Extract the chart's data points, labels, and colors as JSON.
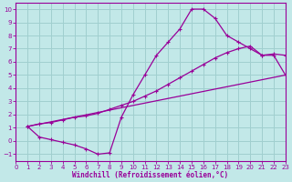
{
  "xlabel": "Windchill (Refroidissement éolien,°C)",
  "xlim": [
    0,
    23
  ],
  "ylim": [
    -1.5,
    10.5
  ],
  "xticks": [
    0,
    1,
    2,
    3,
    4,
    5,
    6,
    7,
    8,
    9,
    10,
    11,
    12,
    13,
    14,
    15,
    16,
    17,
    18,
    19,
    20,
    21,
    22,
    23
  ],
  "yticks": [
    -1,
    0,
    1,
    2,
    3,
    4,
    5,
    6,
    7,
    8,
    9,
    10
  ],
  "bg_color": "#c2e8e8",
  "grid_color": "#a0cfcf",
  "line_color": "#990099",
  "curve1_x": [
    1,
    2,
    3,
    4,
    5,
    6,
    7,
    8,
    9,
    10,
    11,
    12,
    13,
    14,
    15,
    16,
    17,
    18,
    19,
    20,
    21,
    22,
    23
  ],
  "curve1_y": [
    1.1,
    0.3,
    0.1,
    -0.1,
    -0.3,
    -0.6,
    -1.0,
    -0.9,
    1.8,
    3.5,
    5.0,
    6.5,
    7.5,
    8.5,
    10.0,
    10.0,
    9.3,
    8.0,
    7.5,
    7.0,
    6.5,
    6.5,
    5.0
  ],
  "curve2_x": [
    1,
    2,
    3,
    4,
    5,
    6,
    7,
    8,
    9,
    10,
    11,
    12,
    13,
    14,
    15,
    16,
    17,
    18,
    19,
    20,
    21,
    22,
    23
  ],
  "curve2_y": [
    1.1,
    1.3,
    1.4,
    1.6,
    1.8,
    1.9,
    2.1,
    2.4,
    2.7,
    3.0,
    3.4,
    3.8,
    4.3,
    4.8,
    5.3,
    5.8,
    6.3,
    6.7,
    7.0,
    7.2,
    6.5,
    6.6,
    6.5
  ],
  "curve3_x": [
    1,
    23
  ],
  "curve3_y": [
    1.1,
    5.0
  ]
}
